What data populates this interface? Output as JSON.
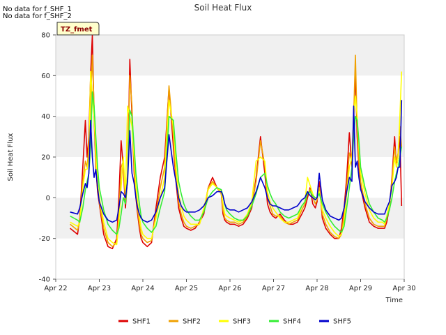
{
  "notes": [
    "No data for f_SHF_1",
    "No data for f_SHF_2"
  ],
  "badge": "TZ_fmet",
  "chart_data": {
    "type": "line",
    "title": "Soil Heat Flux",
    "xlabel": "Time",
    "ylabel": "Soil Heat Flux",
    "ylim": [
      -40,
      80
    ],
    "yticks": [
      -40,
      -20,
      0,
      20,
      40,
      60,
      80
    ],
    "xlim": [
      0,
      8
    ],
    "xticks": [
      0,
      1,
      2,
      3,
      4,
      5,
      6,
      7,
      8
    ],
    "xtick_labels": [
      "Apr 22",
      "Apr 23",
      "Apr 24",
      "Apr 25",
      "Apr 26",
      "Apr 27",
      "Apr 28",
      "Apr 29",
      "Apr 30"
    ],
    "grid": "horizontal bands",
    "legend_position": "bottom",
    "series": [
      {
        "name": "SHF1",
        "color": "#dd0000",
        "x": [
          0.33,
          0.5,
          0.55,
          0.62,
          0.68,
          0.72,
          0.76,
          0.8,
          0.84,
          0.88,
          0.92,
          0.96,
          1.0,
          1.1,
          1.2,
          1.3,
          1.4,
          1.45,
          1.5,
          1.55,
          1.6,
          1.65,
          1.7,
          1.75,
          1.8,
          1.84,
          1.88,
          1.92,
          1.96,
          2.0,
          2.1,
          2.2,
          2.3,
          2.4,
          2.5,
          2.6,
          2.7,
          2.76,
          2.82,
          2.88,
          2.94,
          3.0,
          3.1,
          3.2,
          3.3,
          3.4,
          3.5,
          3.6,
          3.7,
          3.8,
          3.84,
          3.88,
          3.92,
          4.0,
          4.1,
          4.2,
          4.3,
          4.4,
          4.5,
          4.6,
          4.7,
          4.8,
          4.86,
          4.92,
          4.98,
          5.05,
          5.15,
          5.25,
          5.35,
          5.45,
          5.55,
          5.65,
          5.72,
          5.78,
          5.84,
          5.9,
          5.96,
          6.0,
          6.05,
          6.12,
          6.2,
          6.3,
          6.4,
          6.5,
          6.56,
          6.62,
          6.68,
          6.74,
          6.8,
          6.84,
          6.88,
          6.92,
          6.96,
          7.0,
          7.1,
          7.2,
          7.3,
          7.4,
          7.5,
          7.55,
          7.6,
          7.66,
          7.72,
          7.78,
          7.82,
          7.86,
          7.9,
          7.94
        ],
        "y": [
          -15,
          -18,
          -10,
          15,
          38,
          20,
          30,
          60,
          80,
          40,
          15,
          3,
          -3,
          -18,
          -24,
          -25,
          -20,
          0,
          28,
          15,
          -5,
          10,
          68,
          40,
          12,
          0,
          -8,
          -15,
          -20,
          -22,
          -24,
          -22,
          -5,
          10,
          20,
          54,
          25,
          8,
          -5,
          -10,
          -14,
          -15,
          -16,
          -15,
          -12,
          -8,
          5,
          10,
          5,
          2,
          -8,
          -11,
          -12,
          -13,
          -13,
          -14,
          -13,
          -10,
          -5,
          10,
          30,
          12,
          -3,
          -7,
          -9,
          -10,
          -8,
          -11,
          -13,
          -13,
          -12,
          -8,
          -5,
          0,
          5,
          -3,
          -5,
          -2,
          8,
          -10,
          -15,
          -18,
          -20,
          -20,
          -15,
          -5,
          10,
          32,
          15,
          40,
          60,
          30,
          15,
          5,
          -5,
          -12,
          -14,
          -15,
          -15,
          -15,
          -12,
          -5,
          10,
          30,
          15,
          20,
          30,
          -4
        ]
      },
      {
        "name": "SHF2",
        "color": "#f0a000",
        "x": [
          0.33,
          0.5,
          0.55,
          0.62,
          0.68,
          0.72,
          0.76,
          0.8,
          0.84,
          0.88,
          0.92,
          0.96,
          1.0,
          1.1,
          1.2,
          1.3,
          1.4,
          1.45,
          1.5,
          1.55,
          1.6,
          1.65,
          1.7,
          1.75,
          1.8,
          1.84,
          1.88,
          1.92,
          1.96,
          2.0,
          2.1,
          2.2,
          2.3,
          2.4,
          2.5,
          2.6,
          2.7,
          2.76,
          2.82,
          2.88,
          2.94,
          3.0,
          3.1,
          3.2,
          3.3,
          3.4,
          3.5,
          3.6,
          3.7,
          3.8,
          3.84,
          3.88,
          3.92,
          4.0,
          4.1,
          4.2,
          4.3,
          4.4,
          4.5,
          4.6,
          4.7,
          4.8,
          4.86,
          4.92,
          4.98,
          5.05,
          5.15,
          5.25,
          5.35,
          5.45,
          5.55,
          5.65,
          5.72,
          5.78,
          5.84,
          5.9,
          5.96,
          6.0,
          6.05,
          6.12,
          6.2,
          6.3,
          6.4,
          6.5,
          6.56,
          6.62,
          6.68,
          6.74,
          6.8,
          6.84,
          6.88,
          6.92,
          6.96,
          7.0,
          7.1,
          7.2,
          7.3,
          7.4,
          7.5,
          7.55,
          7.6,
          7.66,
          7.72,
          7.78,
          7.82,
          7.86,
          7.9,
          7.94
        ],
        "y": [
          -13,
          -16,
          -12,
          8,
          18,
          15,
          25,
          45,
          70,
          45,
          18,
          5,
          -2,
          -15,
          -22,
          -24,
          -22,
          -8,
          15,
          18,
          -2,
          12,
          60,
          45,
          15,
          2,
          -6,
          -13,
          -18,
          -20,
          -22,
          -21,
          -8,
          5,
          15,
          55,
          30,
          10,
          -2,
          -8,
          -12,
          -14,
          -15,
          -14,
          -13,
          -6,
          5,
          8,
          5,
          2,
          -6,
          -10,
          -11,
          -12,
          -12,
          -13,
          -12,
          -9,
          -4,
          8,
          28,
          16,
          0,
          -4,
          -8,
          -9,
          -9,
          -12,
          -13,
          -12,
          -11,
          -6,
          -3,
          2,
          4,
          0,
          -3,
          -1,
          5,
          -8,
          -13,
          -17,
          -19,
          -20,
          -18,
          -8,
          5,
          22,
          18,
          40,
          70,
          35,
          18,
          8,
          -3,
          -10,
          -13,
          -14,
          -14,
          -14,
          -10,
          -4,
          8,
          25,
          18,
          22,
          35,
          25
        ]
      },
      {
        "name": "SHF3",
        "color": "#ffff00",
        "x": [
          0.33,
          0.5,
          0.55,
          0.62,
          0.68,
          0.72,
          0.76,
          0.8,
          0.84,
          0.88,
          0.92,
          0.96,
          1.0,
          1.1,
          1.2,
          1.3,
          1.4,
          1.45,
          1.5,
          1.55,
          1.6,
          1.65,
          1.7,
          1.75,
          1.8,
          1.84,
          1.88,
          1.92,
          1.96,
          2.0,
          2.1,
          2.2,
          2.3,
          2.4,
          2.5,
          2.6,
          2.7,
          2.76,
          2.82,
          2.88,
          2.94,
          3.0,
          3.1,
          3.2,
          3.3,
          3.4,
          3.5,
          3.6,
          3.7,
          3.8,
          3.84,
          3.88,
          3.92,
          4.0,
          4.1,
          4.2,
          4.3,
          4.4,
          4.5,
          4.6,
          4.7,
          4.8,
          4.86,
          4.92,
          4.98,
          5.05,
          5.15,
          5.25,
          5.35,
          5.45,
          5.55,
          5.65,
          5.72,
          5.78,
          5.84,
          5.9,
          5.96,
          6.0,
          6.05,
          6.12,
          6.2,
          6.3,
          6.4,
          6.5,
          6.56,
          6.62,
          6.68,
          6.74,
          6.8,
          6.84,
          6.88,
          6.92,
          6.96,
          7.0,
          7.1,
          7.2,
          7.3,
          7.4,
          7.5,
          7.55,
          7.6,
          7.66,
          7.72,
          7.78,
          7.82,
          7.86,
          7.9,
          7.94
        ],
        "y": [
          -12,
          -14,
          -12,
          5,
          14,
          14,
          20,
          62,
          50,
          40,
          22,
          8,
          0,
          -12,
          -20,
          -22,
          -23,
          -12,
          5,
          20,
          2,
          45,
          40,
          35,
          20,
          6,
          -2,
          -9,
          -15,
          -18,
          -20,
          -20,
          -10,
          0,
          10,
          48,
          35,
          15,
          2,
          -4,
          -9,
          -11,
          -13,
          -13,
          -13,
          -5,
          4,
          7,
          5,
          3,
          -3,
          -8,
          -9,
          -10,
          -11,
          -12,
          -11,
          -8,
          -2,
          18,
          20,
          18,
          3,
          -2,
          -5,
          -7,
          -10,
          -12,
          -12,
          -11,
          -10,
          -4,
          -2,
          10,
          6,
          2,
          -1,
          0,
          3,
          -6,
          -10,
          -14,
          -17,
          -19,
          -18,
          -12,
          2,
          15,
          20,
          40,
          50,
          40,
          25,
          12,
          2,
          -6,
          -10,
          -12,
          -12,
          -13,
          -9,
          -3,
          5,
          20,
          15,
          20,
          40,
          62
        ]
      },
      {
        "name": "SHF4",
        "color": "#33ee33",
        "x": [
          0.33,
          0.5,
          0.55,
          0.62,
          0.68,
          0.72,
          0.76,
          0.8,
          0.84,
          0.88,
          0.92,
          0.96,
          1.0,
          1.1,
          1.2,
          1.3,
          1.4,
          1.45,
          1.5,
          1.55,
          1.6,
          1.65,
          1.7,
          1.75,
          1.8,
          1.84,
          1.88,
          1.92,
          1.96,
          2.0,
          2.1,
          2.2,
          2.3,
          2.4,
          2.5,
          2.6,
          2.7,
          2.76,
          2.82,
          2.88,
          2.94,
          3.0,
          3.1,
          3.2,
          3.3,
          3.4,
          3.5,
          3.6,
          3.7,
          3.8,
          3.84,
          3.88,
          3.92,
          4.0,
          4.1,
          4.2,
          4.3,
          4.4,
          4.5,
          4.6,
          4.7,
          4.8,
          4.86,
          4.92,
          4.98,
          5.05,
          5.15,
          5.25,
          5.35,
          5.45,
          5.55,
          5.65,
          5.72,
          5.78,
          5.84,
          5.9,
          5.96,
          6.0,
          6.05,
          6.12,
          6.2,
          6.3,
          6.4,
          6.5,
          6.56,
          6.62,
          6.68,
          6.74,
          6.8,
          6.84,
          6.88,
          6.92,
          6.96,
          7.0,
          7.1,
          7.2,
          7.3,
          7.4,
          7.5,
          7.55,
          7.6,
          7.66,
          7.72,
          7.78,
          7.82,
          7.86,
          7.9,
          7.94
        ],
        "y": [
          -9,
          -11,
          -12,
          -5,
          4,
          8,
          12,
          25,
          52,
          45,
          30,
          15,
          5,
          -6,
          -13,
          -16,
          -18,
          -15,
          -8,
          0,
          -3,
          10,
          43,
          40,
          25,
          12,
          4,
          -3,
          -9,
          -12,
          -15,
          -17,
          -14,
          -5,
          3,
          40,
          38,
          22,
          8,
          2,
          -3,
          -6,
          -9,
          -11,
          -11,
          -7,
          0,
          3,
          5,
          4,
          1,
          -3,
          -6,
          -8,
          -10,
          -11,
          -11,
          -9,
          -4,
          2,
          10,
          12,
          6,
          2,
          -1,
          -3,
          -7,
          -9,
          -10,
          -9,
          -8,
          -4,
          -2,
          2,
          3,
          1,
          0,
          0,
          2,
          -3,
          -7,
          -11,
          -14,
          -16,
          -17,
          -14,
          -5,
          5,
          15,
          30,
          40,
          38,
          28,
          15,
          5,
          -3,
          -7,
          -10,
          -11,
          -12,
          -10,
          -6,
          0,
          8,
          12,
          15,
          20,
          25
        ]
      },
      {
        "name": "SHF5",
        "color": "#0000cc",
        "x": [
          0.33,
          0.5,
          0.55,
          0.62,
          0.68,
          0.72,
          0.76,
          0.8,
          0.84,
          0.88,
          0.92,
          0.96,
          1.0,
          1.1,
          1.2,
          1.3,
          1.4,
          1.45,
          1.5,
          1.55,
          1.6,
          1.65,
          1.7,
          1.75,
          1.8,
          1.84,
          1.88,
          1.92,
          1.96,
          2.0,
          2.1,
          2.2,
          2.3,
          2.4,
          2.5,
          2.6,
          2.7,
          2.76,
          2.82,
          2.88,
          2.94,
          3.0,
          3.1,
          3.2,
          3.3,
          3.4,
          3.5,
          3.6,
          3.7,
          3.8,
          3.84,
          3.88,
          3.92,
          4.0,
          4.1,
          4.2,
          4.3,
          4.4,
          4.5,
          4.6,
          4.7,
          4.8,
          4.86,
          4.92,
          4.98,
          5.05,
          5.15,
          5.25,
          5.35,
          5.45,
          5.55,
          5.65,
          5.72,
          5.78,
          5.84,
          5.9,
          5.96,
          6.0,
          6.05,
          6.12,
          6.2,
          6.3,
          6.4,
          6.5,
          6.56,
          6.62,
          6.68,
          6.74,
          6.8,
          6.84,
          6.88,
          6.92,
          6.96,
          7.0,
          7.1,
          7.2,
          7.3,
          7.4,
          7.5,
          7.55,
          7.6,
          7.66,
          7.72,
          7.78,
          7.82,
          7.86,
          7.9,
          7.94
        ],
        "y": [
          -7,
          -8,
          -5,
          2,
          7,
          5,
          12,
          38,
          20,
          10,
          14,
          5,
          -2,
          -8,
          -11,
          -12,
          -11,
          -5,
          3,
          2,
          0,
          8,
          33,
          12,
          7,
          0,
          -5,
          -8,
          -10,
          -11,
          -12,
          -11,
          -7,
          0,
          5,
          31,
          15,
          8,
          0,
          -4,
          -6,
          -7,
          -7,
          -7,
          -6,
          -4,
          0,
          1,
          3,
          3,
          1,
          -3,
          -5,
          -6,
          -6,
          -7,
          -6,
          -5,
          -2,
          3,
          10,
          5,
          0,
          -3,
          -4,
          -4,
          -5,
          -6,
          -6,
          -5,
          -4,
          -1,
          0,
          3,
          1,
          0,
          -1,
          0,
          12,
          -1,
          -6,
          -9,
          -10,
          -11,
          -10,
          -5,
          3,
          10,
          8,
          45,
          15,
          18,
          10,
          4,
          -2,
          -5,
          -7,
          -8,
          -8,
          -8,
          -5,
          -2,
          6,
          8,
          10,
          15,
          15,
          48
        ]
      }
    ]
  }
}
